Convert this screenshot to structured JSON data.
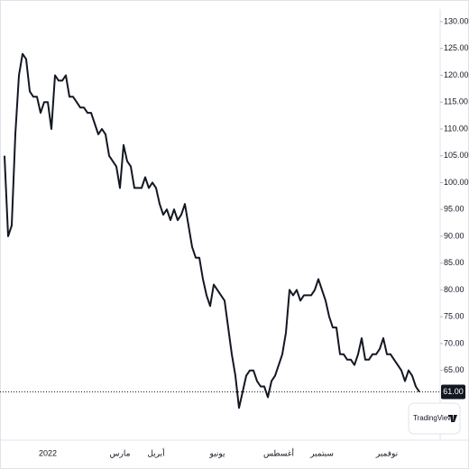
{
  "chart_data": {
    "type": "line",
    "categories": [
      null,
      null,
      null,
      null,
      null,
      null,
      null,
      null,
      null,
      null,
      null,
      null,
      "2022",
      null,
      null,
      null,
      null,
      null,
      null,
      null,
      null,
      null,
      null,
      null,
      null,
      null,
      null,
      null,
      null,
      null,
      null,
      null,
      "مارس",
      null,
      null,
      null,
      null,
      null,
      null,
      null,
      null,
      null,
      "أبريل",
      null,
      null,
      null,
      null,
      null,
      null,
      null,
      null,
      null,
      null,
      null,
      null,
      null,
      null,
      null,
      null,
      "يونيو",
      null,
      null,
      null,
      null,
      null,
      null,
      null,
      null,
      null,
      null,
      null,
      null,
      null,
      null,
      null,
      null,
      "أغسطس",
      null,
      null,
      null,
      null,
      null,
      null,
      null,
      null,
      null,
      null,
      null,
      "سبتمبر",
      null,
      null,
      null,
      null,
      null,
      null,
      null,
      null,
      null,
      null,
      null,
      null,
      null,
      null,
      null,
      null,
      null,
      "نوفمبر",
      null,
      null,
      null,
      null,
      null,
      null,
      null,
      null,
      null
    ],
    "values": [
      105,
      90,
      92,
      109,
      120,
      124,
      123,
      117,
      116,
      116,
      113,
      115,
      115,
      110,
      120,
      119,
      119,
      120,
      116,
      116,
      115,
      114,
      114,
      113,
      113,
      111,
      109,
      110,
      109,
      105,
      104,
      103,
      99,
      107,
      104,
      103,
      99,
      99,
      99,
      101,
      99,
      100,
      99,
      96,
      94,
      95,
      93,
      95,
      93,
      94,
      96,
      92,
      88,
      86,
      86,
      82,
      79,
      77,
      81,
      80,
      79,
      78,
      73,
      68,
      64,
      58,
      61,
      64,
      65,
      65,
      63,
      62,
      62,
      60,
      63,
      64,
      66,
      68,
      72,
      80,
      79,
      80,
      78,
      79,
      79,
      79,
      80,
      82,
      80,
      78,
      75,
      73,
      73,
      68,
      68,
      67,
      67,
      66,
      68,
      71,
      67,
      67,
      68,
      68,
      69,
      71,
      68,
      68,
      67,
      66,
      65,
      63,
      65,
      64,
      62,
      61
    ],
    "color": "#131722",
    "ylim": [
      52,
      132.35
    ],
    "yticks": [
      {
        "value": 65,
        "label": "65.00"
      },
      {
        "value": 70,
        "label": "70.00"
      },
      {
        "value": 75,
        "label": "75.00"
      },
      {
        "value": 80,
        "label": "80.00"
      },
      {
        "value": 85,
        "label": "85.00"
      },
      {
        "value": 90,
        "label": "90.00"
      },
      {
        "value": 95,
        "label": "95.00"
      },
      {
        "value": 100,
        "label": "100.00"
      },
      {
        "value": 105,
        "label": "105.00"
      },
      {
        "value": 110,
        "label": "110.00"
      },
      {
        "value": 115,
        "label": "115.00"
      },
      {
        "value": 120,
        "label": "120.00"
      },
      {
        "value": 125,
        "label": "125.00"
      },
      {
        "value": 130,
        "label": "130.00"
      }
    ],
    "price_line": {
      "value": 61,
      "label": "61.00"
    },
    "watermark": "TradingView"
  }
}
